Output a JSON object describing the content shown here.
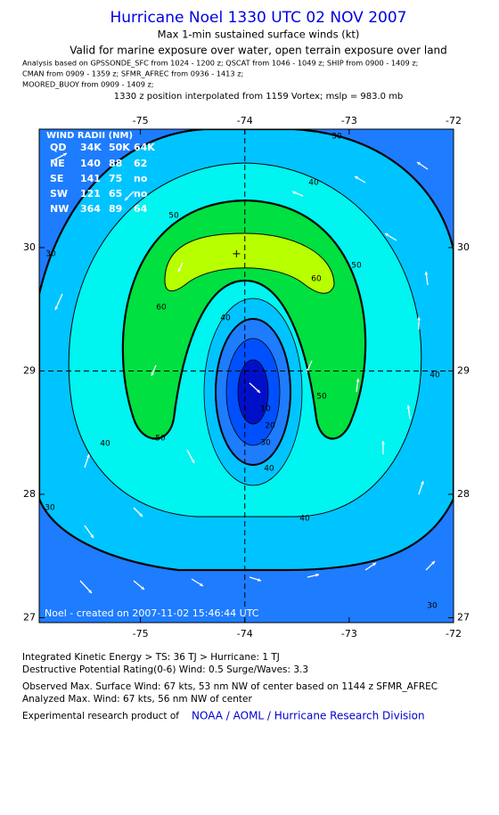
{
  "chart_data": {
    "type": "contour",
    "title": "Hurricane Noel 1330 UTC 02 NOV 2007",
    "subtitle": "Max 1-min sustained surface winds (kt)",
    "subtitle2": "Valid for marine exposure over water, open terrain exposure over land",
    "analysis_lines": [
      "Analysis based on  GPSSONDE_SFC from 1024 - 1200 z;  QSCAT from 1046 - 1049 z;  SHIP from 0900 - 1409 z;",
      "CMAN from 0909 - 1359 z;  SFMR_AFREC from 0936 - 1413 z;",
      "MOORED_BUOY from 0909 - 1409 z;"
    ],
    "position_note": "1330 z position interpolated from 1159 Vortex; mslp = 983.0 mb",
    "xlim": [
      -75.97,
      -72
    ],
    "ylim": [
      26.96,
      30.96
    ],
    "xticks": [
      -75,
      -74,
      -73,
      -72
    ],
    "yticks": [
      27,
      28,
      29,
      30
    ],
    "levels": [
      10,
      20,
      30,
      40,
      50,
      60
    ],
    "colors": [
      "#0010c8",
      "#0050ff",
      "#1e7cff",
      "#00c4ff",
      "#00f4f0",
      "#00e040",
      "#b8ff00"
    ],
    "center": {
      "x": -74,
      "y": 29
    },
    "max_wind_marker": {
      "x": -74.08,
      "y": 29.95
    },
    "wind_radii": {
      "title": "WIND RADII (NM)",
      "columns": [
        "QD",
        "34K",
        "50K",
        "64K"
      ],
      "rows": [
        [
          "NE",
          140,
          88,
          62
        ],
        [
          "SE",
          141,
          75,
          "no"
        ],
        [
          "SW",
          121,
          65,
          "no"
        ],
        [
          "NW",
          364,
          89,
          64
        ]
      ]
    },
    "stamp": "Noel - created on 2007-11-02 15:46:44 UTC"
  },
  "footer": {
    "lines": [
      "Integrated Kinetic Energy > TS: 36 TJ   > Hurricane: 1 TJ",
      "Destructive Potential Rating(0-6)   Wind: 0.5 Surge/Waves: 3.3",
      "Observed Max. Surface Wind: 67 kts, 53 nm NW of center based on 1144 z SFMR_AFREC",
      "Analyzed Max. Wind: 67 kts, 56 nm NW of center"
    ],
    "credit": "Experimental research product of",
    "link": "NOAA / AOML / Hurricane Research Division"
  }
}
